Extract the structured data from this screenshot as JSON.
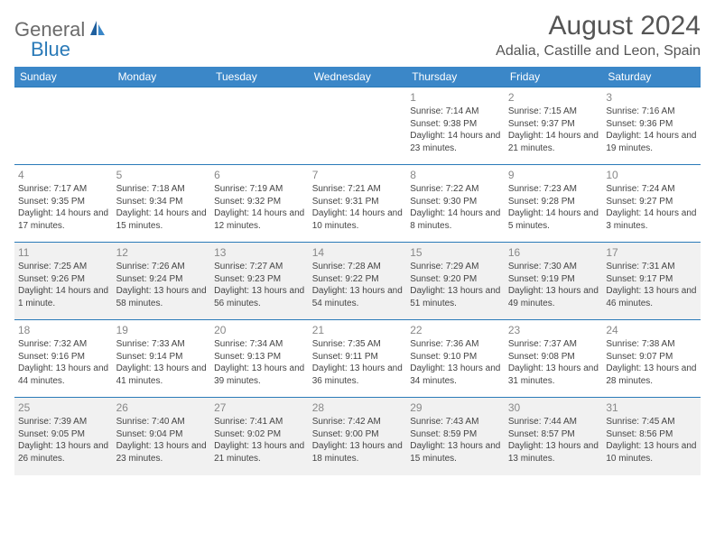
{
  "logo": {
    "part1": "General",
    "part2": "Blue"
  },
  "title": "August 2024",
  "location": "Adalia, Castille and Leon, Spain",
  "weekdays": [
    "Sunday",
    "Monday",
    "Tuesday",
    "Wednesday",
    "Thursday",
    "Friday",
    "Saturday"
  ],
  "colors": {
    "header_bg": "#3b87c8",
    "header_text": "#ffffff",
    "border": "#2a7ab8",
    "alt_row_bg": "#f1f1f1",
    "logo_gray": "#6b6b6b",
    "logo_blue": "#2a7ab8"
  },
  "weeks": [
    [
      null,
      null,
      null,
      null,
      {
        "n": "1",
        "sr": "Sunrise: 7:14 AM",
        "ss": "Sunset: 9:38 PM",
        "dl": "Daylight: 14 hours and 23 minutes."
      },
      {
        "n": "2",
        "sr": "Sunrise: 7:15 AM",
        "ss": "Sunset: 9:37 PM",
        "dl": "Daylight: 14 hours and 21 minutes."
      },
      {
        "n": "3",
        "sr": "Sunrise: 7:16 AM",
        "ss": "Sunset: 9:36 PM",
        "dl": "Daylight: 14 hours and 19 minutes."
      }
    ],
    [
      {
        "n": "4",
        "sr": "Sunrise: 7:17 AM",
        "ss": "Sunset: 9:35 PM",
        "dl": "Daylight: 14 hours and 17 minutes."
      },
      {
        "n": "5",
        "sr": "Sunrise: 7:18 AM",
        "ss": "Sunset: 9:34 PM",
        "dl": "Daylight: 14 hours and 15 minutes."
      },
      {
        "n": "6",
        "sr": "Sunrise: 7:19 AM",
        "ss": "Sunset: 9:32 PM",
        "dl": "Daylight: 14 hours and 12 minutes."
      },
      {
        "n": "7",
        "sr": "Sunrise: 7:21 AM",
        "ss": "Sunset: 9:31 PM",
        "dl": "Daylight: 14 hours and 10 minutes."
      },
      {
        "n": "8",
        "sr": "Sunrise: 7:22 AM",
        "ss": "Sunset: 9:30 PM",
        "dl": "Daylight: 14 hours and 8 minutes."
      },
      {
        "n": "9",
        "sr": "Sunrise: 7:23 AM",
        "ss": "Sunset: 9:28 PM",
        "dl": "Daylight: 14 hours and 5 minutes."
      },
      {
        "n": "10",
        "sr": "Sunrise: 7:24 AM",
        "ss": "Sunset: 9:27 PM",
        "dl": "Daylight: 14 hours and 3 minutes."
      }
    ],
    [
      {
        "n": "11",
        "sr": "Sunrise: 7:25 AM",
        "ss": "Sunset: 9:26 PM",
        "dl": "Daylight: 14 hours and 1 minute."
      },
      {
        "n": "12",
        "sr": "Sunrise: 7:26 AM",
        "ss": "Sunset: 9:24 PM",
        "dl": "Daylight: 13 hours and 58 minutes."
      },
      {
        "n": "13",
        "sr": "Sunrise: 7:27 AM",
        "ss": "Sunset: 9:23 PM",
        "dl": "Daylight: 13 hours and 56 minutes."
      },
      {
        "n": "14",
        "sr": "Sunrise: 7:28 AM",
        "ss": "Sunset: 9:22 PM",
        "dl": "Daylight: 13 hours and 54 minutes."
      },
      {
        "n": "15",
        "sr": "Sunrise: 7:29 AM",
        "ss": "Sunset: 9:20 PM",
        "dl": "Daylight: 13 hours and 51 minutes."
      },
      {
        "n": "16",
        "sr": "Sunrise: 7:30 AM",
        "ss": "Sunset: 9:19 PM",
        "dl": "Daylight: 13 hours and 49 minutes."
      },
      {
        "n": "17",
        "sr": "Sunrise: 7:31 AM",
        "ss": "Sunset: 9:17 PM",
        "dl": "Daylight: 13 hours and 46 minutes."
      }
    ],
    [
      {
        "n": "18",
        "sr": "Sunrise: 7:32 AM",
        "ss": "Sunset: 9:16 PM",
        "dl": "Daylight: 13 hours and 44 minutes."
      },
      {
        "n": "19",
        "sr": "Sunrise: 7:33 AM",
        "ss": "Sunset: 9:14 PM",
        "dl": "Daylight: 13 hours and 41 minutes."
      },
      {
        "n": "20",
        "sr": "Sunrise: 7:34 AM",
        "ss": "Sunset: 9:13 PM",
        "dl": "Daylight: 13 hours and 39 minutes."
      },
      {
        "n": "21",
        "sr": "Sunrise: 7:35 AM",
        "ss": "Sunset: 9:11 PM",
        "dl": "Daylight: 13 hours and 36 minutes."
      },
      {
        "n": "22",
        "sr": "Sunrise: 7:36 AM",
        "ss": "Sunset: 9:10 PM",
        "dl": "Daylight: 13 hours and 34 minutes."
      },
      {
        "n": "23",
        "sr": "Sunrise: 7:37 AM",
        "ss": "Sunset: 9:08 PM",
        "dl": "Daylight: 13 hours and 31 minutes."
      },
      {
        "n": "24",
        "sr": "Sunrise: 7:38 AM",
        "ss": "Sunset: 9:07 PM",
        "dl": "Daylight: 13 hours and 28 minutes."
      }
    ],
    [
      {
        "n": "25",
        "sr": "Sunrise: 7:39 AM",
        "ss": "Sunset: 9:05 PM",
        "dl": "Daylight: 13 hours and 26 minutes."
      },
      {
        "n": "26",
        "sr": "Sunrise: 7:40 AM",
        "ss": "Sunset: 9:04 PM",
        "dl": "Daylight: 13 hours and 23 minutes."
      },
      {
        "n": "27",
        "sr": "Sunrise: 7:41 AM",
        "ss": "Sunset: 9:02 PM",
        "dl": "Daylight: 13 hours and 21 minutes."
      },
      {
        "n": "28",
        "sr": "Sunrise: 7:42 AM",
        "ss": "Sunset: 9:00 PM",
        "dl": "Daylight: 13 hours and 18 minutes."
      },
      {
        "n": "29",
        "sr": "Sunrise: 7:43 AM",
        "ss": "Sunset: 8:59 PM",
        "dl": "Daylight: 13 hours and 15 minutes."
      },
      {
        "n": "30",
        "sr": "Sunrise: 7:44 AM",
        "ss": "Sunset: 8:57 PM",
        "dl": "Daylight: 13 hours and 13 minutes."
      },
      {
        "n": "31",
        "sr": "Sunrise: 7:45 AM",
        "ss": "Sunset: 8:56 PM",
        "dl": "Daylight: 13 hours and 10 minutes."
      }
    ]
  ]
}
